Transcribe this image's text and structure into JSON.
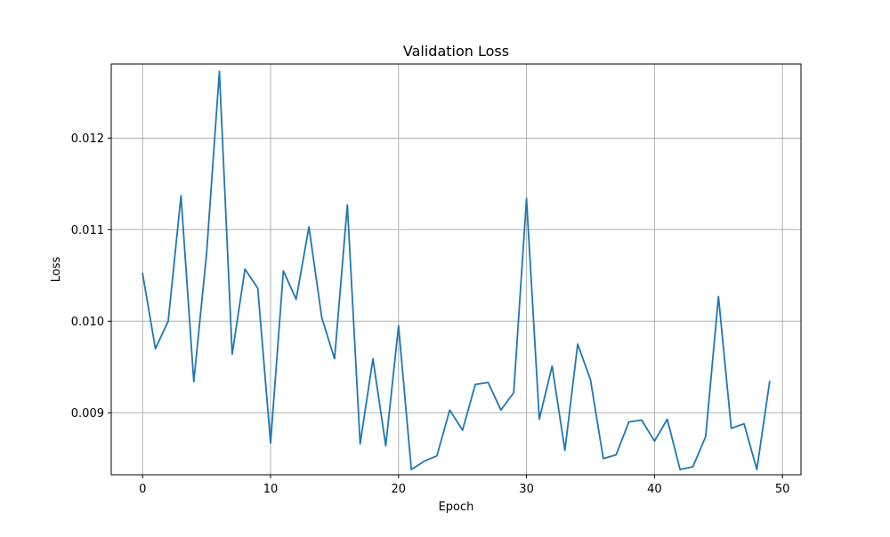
{
  "chart_data": {
    "type": "line",
    "title": "Validation Loss",
    "xlabel": "Epoch",
    "ylabel": "Loss",
    "xlim": [
      -2.45,
      51.45
    ],
    "ylim": [
      0.008323,
      0.012809
    ],
    "xticks": [
      0,
      10,
      20,
      30,
      40,
      50
    ],
    "xtick_labels": [
      "0",
      "10",
      "20",
      "30",
      "40",
      "50"
    ],
    "yticks": [
      0.009,
      0.01,
      0.011,
      0.012
    ],
    "ytick_labels": [
      "0.009",
      "0.010",
      "0.011",
      "0.012"
    ],
    "grid": true,
    "line_color": "#1f77b4",
    "series": [
      {
        "x": [
          0,
          1,
          2,
          3,
          4,
          5,
          6,
          7,
          8,
          9,
          10,
          11,
          12,
          13,
          14,
          15,
          16,
          17,
          18,
          19,
          20,
          21,
          22,
          23,
          24,
          25,
          26,
          27,
          28,
          29,
          30,
          31,
          32,
          33,
          34,
          35,
          36,
          37,
          38,
          39,
          40,
          41,
          42,
          43,
          44,
          45,
          46,
          47,
          48,
          49
        ],
        "values": [
          0.01052,
          0.0097,
          0.01,
          0.01137,
          0.00934,
          0.01074,
          0.01273,
          0.00964,
          0.01057,
          0.01036,
          0.00867,
          0.01055,
          0.01024,
          0.01103,
          0.01004,
          0.00959,
          0.01127,
          0.00866,
          0.00959,
          0.00864,
          0.00995,
          0.00838,
          0.00847,
          0.00853,
          0.00903,
          0.00881,
          0.00931,
          0.00933,
          0.00903,
          0.00922,
          0.01134,
          0.00893,
          0.00951,
          0.00859,
          0.00975,
          0.00936,
          0.0085,
          0.00854,
          0.0089,
          0.00892,
          0.00869,
          0.00893,
          0.00838,
          0.00841,
          0.00874,
          0.01027,
          0.00883,
          0.00888,
          0.00838,
          0.00934
        ]
      }
    ]
  }
}
